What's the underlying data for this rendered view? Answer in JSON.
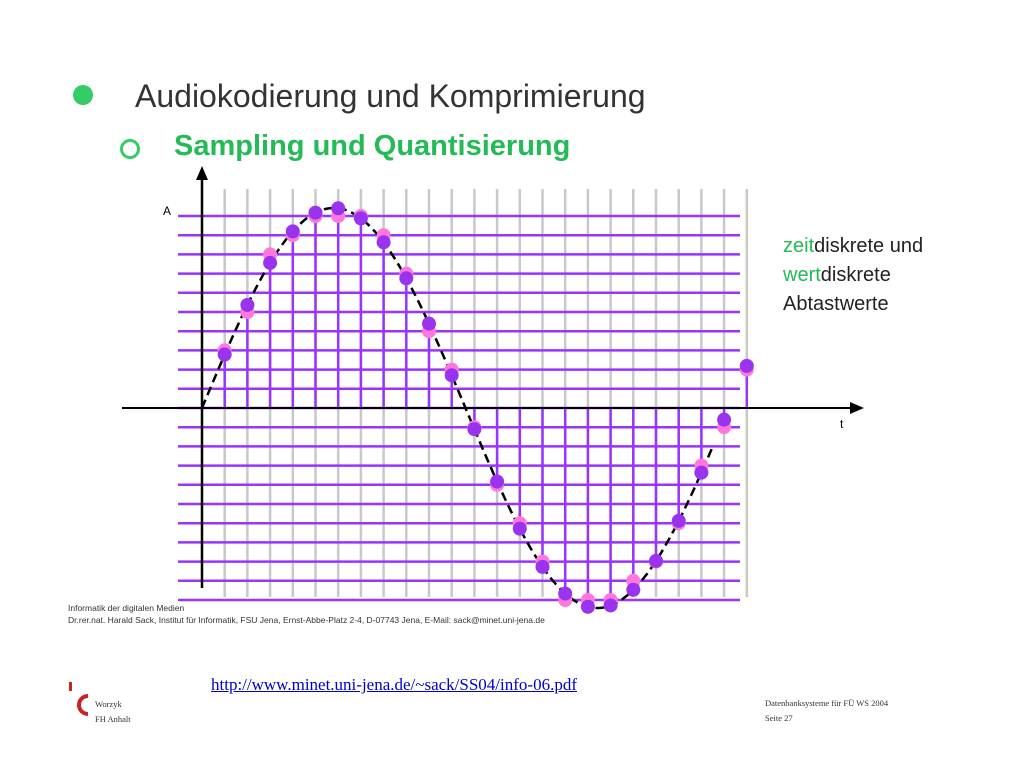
{
  "colors": {
    "bullet": "#33cc66",
    "accent_green": "#22bb55",
    "grid_horizontal": "#9933ff",
    "grid_vertical": "#c8c8c8",
    "sample_line": "#9933ff",
    "sample_point": "#9933ee",
    "quantized_point": "#ff77dd",
    "link": "#0000cc",
    "logo": "#cc2222"
  },
  "slide": {
    "heading": "Audiokodierung und Komprimierung",
    "subheading": "Sampling und Quantisierung"
  },
  "diagram": {
    "axis_y_label": "A",
    "axis_x_label": "t",
    "icon_y_arrow": "arrow-up-icon",
    "icon_x_arrow": "arrow-right-icon",
    "signal": "sine",
    "sample_count": 24,
    "amplitude_levels": 21,
    "annotation": {
      "line1_accent": "zeit",
      "line1_rest": "diskrete und",
      "line2_accent": "wert",
      "line2_rest": "diskrete",
      "line3": "Abtastwerte"
    },
    "credit_line1": "Informatik der digitalen Medien",
    "credit_line2": "Dr.rer.nat. Harald Sack, Institut für Informatik, FSU Jena, Ernst-Abbe-Platz 2-4, D-07743 Jena, E-Mail: sack@minet.uni-jena.de"
  },
  "source_url": "http://www.minet.uni-jena.de/~sack/SS04/info-06.pdf",
  "footer": {
    "logo_icon": "fh-anhalt-logo-icon",
    "author": "Worzyk",
    "institution": "FH Anhalt",
    "course": "Datenbanksysteme für FÜ WS 2004",
    "page": "Seite 27"
  }
}
